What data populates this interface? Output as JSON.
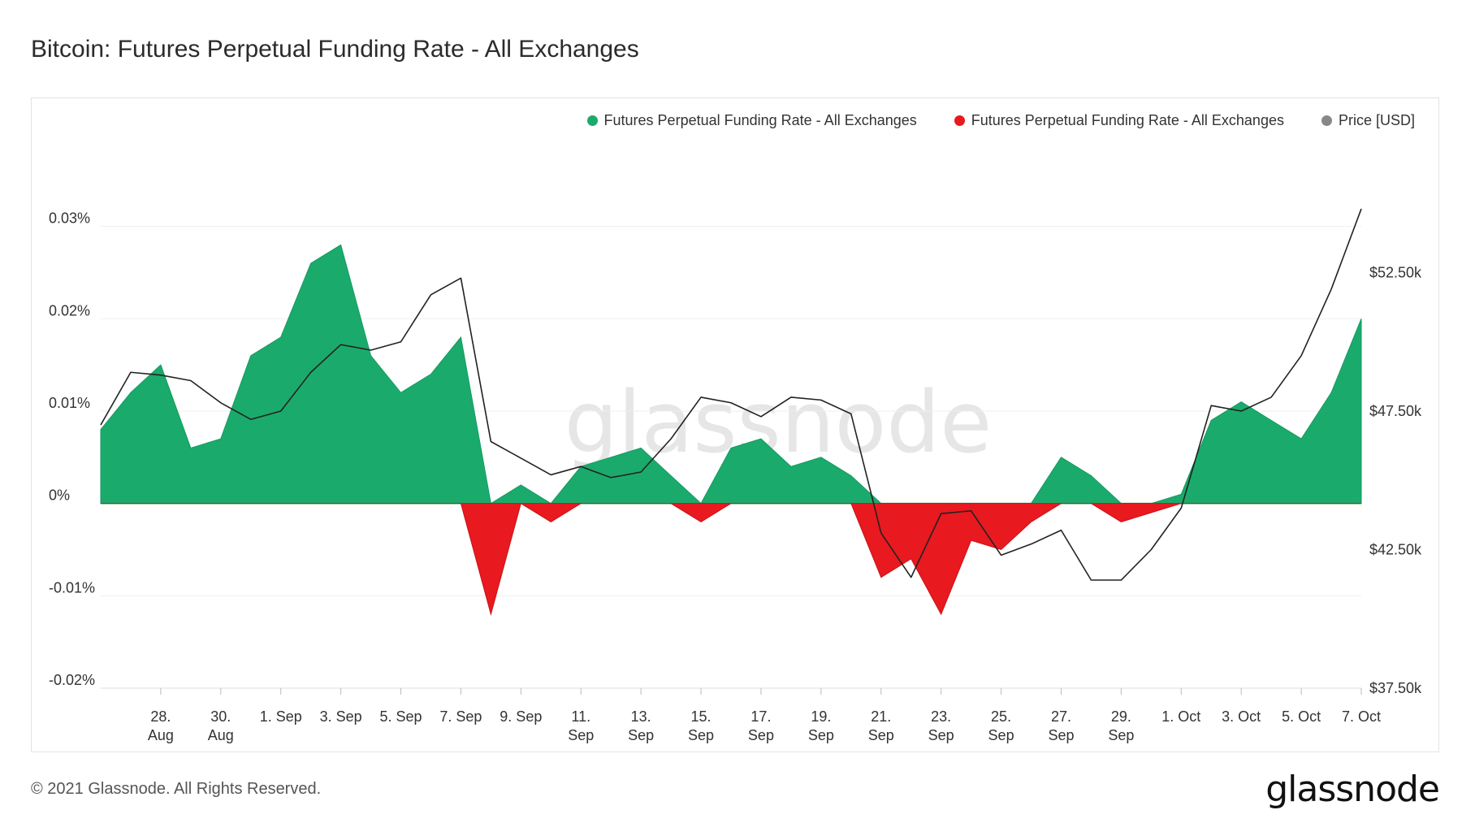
{
  "page": {
    "title": "Bitcoin: Futures Perpetual Funding Rate - All Exchanges",
    "footer": "© 2021 Glassnode. All Rights Reserved.",
    "logo": "glassnode",
    "watermark": "glassnode"
  },
  "legend": [
    {
      "label": "Futures Perpetual Funding Rate - All Exchanges",
      "color": "#1aab6c"
    },
    {
      "label": "Futures Perpetual Funding Rate - All Exchanges",
      "color": "#e8191f"
    },
    {
      "label": "Price [USD]",
      "color": "#888888"
    }
  ],
  "chart_data": {
    "type": "area",
    "title": "Bitcoin: Futures Perpetual Funding Rate - All Exchanges",
    "x_range": [
      "2021-08-26",
      "2021-10-07"
    ],
    "x_ticks": [
      {
        "line1": "28.",
        "line2": "Aug",
        "date": "2021-08-28"
      },
      {
        "line1": "30.",
        "line2": "Aug",
        "date": "2021-08-30"
      },
      {
        "line1": "1. Sep",
        "line2": "",
        "date": "2021-09-01"
      },
      {
        "line1": "3. Sep",
        "line2": "",
        "date": "2021-09-03"
      },
      {
        "line1": "5. Sep",
        "line2": "",
        "date": "2021-09-05"
      },
      {
        "line1": "7. Sep",
        "line2": "",
        "date": "2021-09-07"
      },
      {
        "line1": "9. Sep",
        "line2": "",
        "date": "2021-09-09"
      },
      {
        "line1": "11.",
        "line2": "Sep",
        "date": "2021-09-11"
      },
      {
        "line1": "13.",
        "line2": "Sep",
        "date": "2021-09-13"
      },
      {
        "line1": "15.",
        "line2": "Sep",
        "date": "2021-09-15"
      },
      {
        "line1": "17.",
        "line2": "Sep",
        "date": "2021-09-17"
      },
      {
        "line1": "19.",
        "line2": "Sep",
        "date": "2021-09-19"
      },
      {
        "line1": "21.",
        "line2": "Sep",
        "date": "2021-09-21"
      },
      {
        "line1": "23.",
        "line2": "Sep",
        "date": "2021-09-23"
      },
      {
        "line1": "25.",
        "line2": "Sep",
        "date": "2021-09-25"
      },
      {
        "line1": "27.",
        "line2": "Sep",
        "date": "2021-09-27"
      },
      {
        "line1": "29.",
        "line2": "Sep",
        "date": "2021-09-29"
      },
      {
        "line1": "1. Oct",
        "line2": "",
        "date": "2021-10-01"
      },
      {
        "line1": "3. Oct",
        "line2": "",
        "date": "2021-10-03"
      },
      {
        "line1": "5. Oct",
        "line2": "",
        "date": "2021-10-05"
      },
      {
        "line1": "7. Oct",
        "line2": "",
        "date": "2021-10-07"
      }
    ],
    "y_left": {
      "range": [
        -0.0002,
        0.0004
      ],
      "ticks": [
        {
          "value": 0.0003,
          "label": "0.03%"
        },
        {
          "value": 0.0002,
          "label": "0.02%"
        },
        {
          "value": 0.0001,
          "label": "0.01%"
        },
        {
          "value": 0,
          "label": "0%"
        },
        {
          "value": -0.0001,
          "label": "-0.01%"
        },
        {
          "value": -0.0002,
          "label": "-0.02%"
        }
      ]
    },
    "y_right": {
      "range": [
        37500,
        57500
      ],
      "ticks": [
        {
          "value": 52500,
          "label": "$52.50k"
        },
        {
          "value": 47500,
          "label": "$47.50k"
        },
        {
          "value": 42500,
          "label": "$42.50k"
        },
        {
          "value": 37500,
          "label": "$37.50k"
        }
      ]
    },
    "funding_rate": {
      "name": "Futures Perpetual Funding Rate - All Exchanges",
      "x": [
        "2021-08-26",
        "2021-08-27",
        "2021-08-28",
        "2021-08-29",
        "2021-08-30",
        "2021-08-31",
        "2021-09-01",
        "2021-09-02",
        "2021-09-03",
        "2021-09-04",
        "2021-09-05",
        "2021-09-06",
        "2021-09-07",
        "2021-09-08",
        "2021-09-09",
        "2021-09-10",
        "2021-09-11",
        "2021-09-12",
        "2021-09-13",
        "2021-09-14",
        "2021-09-15",
        "2021-09-16",
        "2021-09-17",
        "2021-09-18",
        "2021-09-19",
        "2021-09-20",
        "2021-09-21",
        "2021-09-22",
        "2021-09-23",
        "2021-09-24",
        "2021-09-25",
        "2021-09-26",
        "2021-09-27",
        "2021-09-28",
        "2021-09-29",
        "2021-09-30",
        "2021-10-01",
        "2021-10-02",
        "2021-10-03",
        "2021-10-04",
        "2021-10-05",
        "2021-10-06",
        "2021-10-07"
      ],
      "y": [
        8e-05,
        0.00012,
        0.00015,
        6e-05,
        7e-05,
        0.00016,
        0.00018,
        0.00026,
        0.00028,
        0.00016,
        0.00012,
        0.00014,
        0.00018,
        -0.00012,
        2e-05,
        -2e-05,
        4e-05,
        5e-05,
        6e-05,
        3e-05,
        -2e-05,
        6e-05,
        7e-05,
        4e-05,
        5e-05,
        3e-05,
        -8e-05,
        -6e-05,
        -0.00012,
        -4e-05,
        -5e-05,
        -2e-05,
        5e-05,
        3e-05,
        -2e-05,
        -1e-05,
        1e-05,
        9e-05,
        0.00011,
        9e-05,
        7e-05,
        0.00012,
        0.0002
      ]
    },
    "price": {
      "name": "Price [USD]",
      "x": [
        "2021-08-26",
        "2021-08-27",
        "2021-08-28",
        "2021-08-29",
        "2021-08-30",
        "2021-08-31",
        "2021-09-01",
        "2021-09-02",
        "2021-09-03",
        "2021-09-04",
        "2021-09-05",
        "2021-09-06",
        "2021-09-07",
        "2021-09-08",
        "2021-09-09",
        "2021-09-10",
        "2021-09-11",
        "2021-09-12",
        "2021-09-13",
        "2021-09-14",
        "2021-09-15",
        "2021-09-16",
        "2021-09-17",
        "2021-09-18",
        "2021-09-19",
        "2021-09-20",
        "2021-09-21",
        "2021-09-22",
        "2021-09-23",
        "2021-09-24",
        "2021-09-25",
        "2021-09-26",
        "2021-09-27",
        "2021-09-28",
        "2021-09-29",
        "2021-09-30",
        "2021-10-01",
        "2021-10-02",
        "2021-10-03",
        "2021-10-04",
        "2021-10-05",
        "2021-10-06",
        "2021-10-07"
      ],
      "y": [
        47000,
        48900,
        48800,
        48600,
        47800,
        47200,
        47500,
        48900,
        49900,
        49700,
        50000,
        51700,
        52300,
        46400,
        45800,
        45200,
        45500,
        45100,
        45300,
        46500,
        48000,
        47800,
        47300,
        48000,
        47900,
        47400,
        43100,
        41500,
        43800,
        43900,
        42300,
        42700,
        43200,
        41400,
        41400,
        42500,
        44000,
        47700,
        47500,
        48000,
        49500,
        51900,
        54800
      ]
    }
  }
}
